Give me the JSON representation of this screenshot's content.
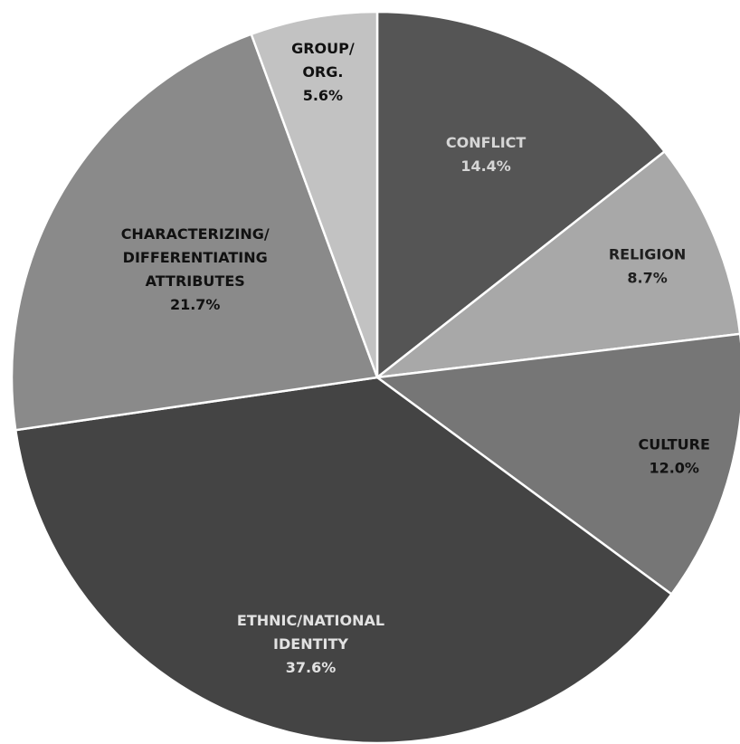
{
  "chart_data": {
    "type": "pie",
    "title": "",
    "start_angle_deg": 0,
    "direction": "clockwise",
    "slices": [
      {
        "label_lines": [
          "CONFLICT"
        ],
        "value_label": "14.4%",
        "value": 14.4,
        "color": "#555555",
        "text_color": "#d6d6d6"
      },
      {
        "label_lines": [
          "RELIGION"
        ],
        "value_label": "8.7%",
        "value": 8.7,
        "color": "#a8a8a8",
        "text_color": "#1e1e1e"
      },
      {
        "label_lines": [
          "CULTURE"
        ],
        "value_label": "12.0%",
        "value": 12.0,
        "color": "#767676",
        "text_color": "#111111"
      },
      {
        "label_lines": [
          "ETHNIC/NATIONAL",
          "IDENTITY"
        ],
        "value_label": "37.6%",
        "value": 37.6,
        "color": "#444444",
        "text_color": "#e2e2e2"
      },
      {
        "label_lines": [
          "CHARACTERIZING/",
          "DIFFERENTIATING",
          "ATTRIBUTES"
        ],
        "value_label": "21.7%",
        "value": 21.7,
        "color": "#8a8a8a",
        "text_color": "#111111"
      },
      {
        "label_lines": [
          "GROUP/",
          "ORG."
        ],
        "value_label": "5.6%",
        "value": 5.6,
        "color": "#c2c2c2",
        "text_color": "#111111"
      }
    ]
  }
}
